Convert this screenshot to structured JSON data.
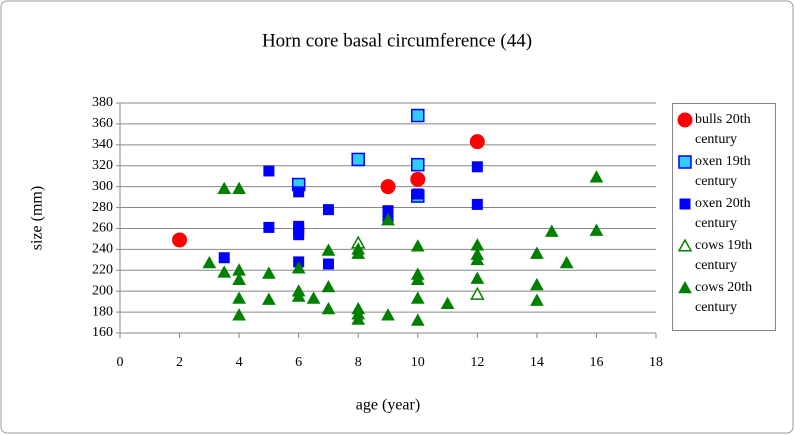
{
  "chart_data": {
    "type": "scatter",
    "title": "Horn core basal circumference (44)",
    "xlabel": "age (year)",
    "ylabel": "size (mm)",
    "xlim": [
      0,
      18
    ],
    "xticks": [
      0,
      2,
      4,
      6,
      8,
      10,
      12,
      14,
      16,
      18
    ],
    "ylim": [
      160,
      380
    ],
    "yticks": [
      160,
      180,
      200,
      220,
      240,
      260,
      280,
      300,
      320,
      340,
      360,
      380
    ],
    "grid": true,
    "legend": "right",
    "series": [
      {
        "name": "bulls 20th century",
        "color": "#ff0000",
        "marker": "circle",
        "filled": true,
        "x": [
          2,
          9,
          10,
          12
        ],
        "values": [
          249,
          300,
          307,
          343
        ]
      },
      {
        "name": "oxen 19th century",
        "color": "#33ccff",
        "edgecolor": "#0000ff",
        "marker": "square",
        "filled": true,
        "x": [
          6,
          8,
          10,
          10,
          10
        ],
        "values": [
          302,
          326,
          368,
          321,
          291
        ]
      },
      {
        "name": "oxen 20th century",
        "color": "#0000ff",
        "marker": "square",
        "filled": true,
        "x": [
          3.5,
          5,
          5,
          6,
          6,
          6,
          6,
          6,
          7,
          7,
          9,
          9,
          10,
          12,
          12
        ],
        "values": [
          232,
          315,
          261,
          295,
          262,
          258,
          254,
          228,
          278,
          226,
          277,
          271,
          293,
          319,
          283
        ]
      },
      {
        "name": "cows 19th century",
        "color": "#008000",
        "marker": "triangle",
        "filled": false,
        "x": [
          8,
          12
        ],
        "values": [
          246,
          197
        ]
      },
      {
        "name": "cows 20th century",
        "color": "#008000",
        "marker": "triangle",
        "filled": true,
        "x": [
          3,
          3.5,
          3.5,
          4,
          4,
          4,
          4,
          4,
          5,
          5,
          6,
          6,
          6,
          6.5,
          7,
          7,
          7,
          8,
          8,
          8,
          8,
          8,
          9,
          9,
          10,
          10,
          10,
          10,
          10,
          11,
          12,
          12,
          12,
          12,
          14,
          14,
          14,
          14.5,
          15,
          16,
          16
        ],
        "values": [
          227,
          298,
          218,
          298,
          220,
          211,
          193,
          177,
          217,
          192,
          222,
          200,
          195,
          193,
          239,
          204,
          183,
          240,
          236,
          183,
          178,
          173,
          268,
          177,
          243,
          216,
          211,
          193,
          172,
          188,
          244,
          235,
          230,
          212,
          236,
          206,
          191,
          257,
          227,
          309,
          258
        ]
      }
    ]
  }
}
